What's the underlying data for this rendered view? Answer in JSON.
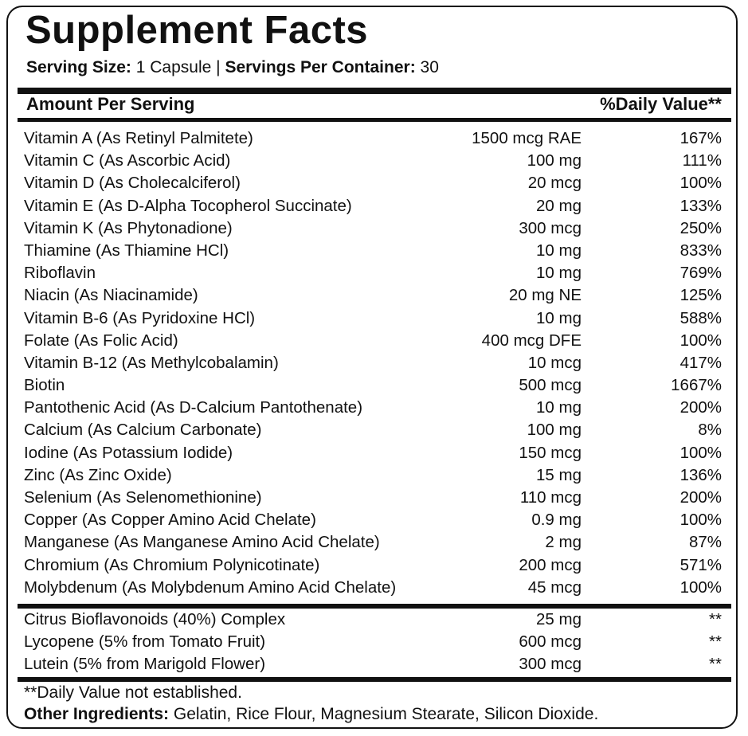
{
  "title": "Supplement Facts",
  "serving": {
    "size_label": "Serving Size:",
    "size_value": "1 Capsule",
    "separator": "|",
    "per_container_label": "Servings Per Container:",
    "per_container_value": "30"
  },
  "header": {
    "amount": "Amount Per Serving",
    "dv": "%Daily Value**"
  },
  "nutrients": [
    {
      "name": "Vitamin A (As Retinyl Palmitete)",
      "amount": "1500 mcg RAE",
      "dv": "167%"
    },
    {
      "name": "Vitamin C (As Ascorbic Acid)",
      "amount": "100 mg",
      "dv": "111%"
    },
    {
      "name": "Vitamin D (As Cholecalciferol)",
      "amount": "20 mcg",
      "dv": "100%"
    },
    {
      "name": "Vitamin E (As D-Alpha Tocopherol Succinate)",
      "amount": "20 mg",
      "dv": "133%"
    },
    {
      "name": "Vitamin K (As Phytonadione)",
      "amount": "300 mcg",
      "dv": "250%"
    },
    {
      "name": "Thiamine (As Thiamine HCl)",
      "amount": "10 mg",
      "dv": "833%"
    },
    {
      "name": "Riboflavin",
      "amount": "10 mg",
      "dv": "769%"
    },
    {
      "name": "Niacin (As Niacinamide)",
      "amount": "20 mg NE",
      "dv": "125%"
    },
    {
      "name": "Vitamin B-6 (As Pyridoxine HCl)",
      "amount": "10 mg",
      "dv": "588%"
    },
    {
      "name": "Folate (As Folic Acid)",
      "amount": "400 mcg DFE",
      "dv": "100%"
    },
    {
      "name": "Vitamin B-12 (As Methylcobalamin)",
      "amount": "10 mcg",
      "dv": "417%"
    },
    {
      "name": "Biotin",
      "amount": "500 mcg",
      "dv": "1667%"
    },
    {
      "name": "Pantothenic Acid (As D-Calcium Pantothenate)",
      "amount": "10 mg",
      "dv": "200%"
    },
    {
      "name": "Calcium (As Calcium Carbonate)",
      "amount": "100 mg",
      "dv": "8%"
    },
    {
      "name": "Iodine (As Potassium Iodide)",
      "amount": "150 mcg",
      "dv": "100%"
    },
    {
      "name": "Zinc (As Zinc Oxide)",
      "amount": "15 mg",
      "dv": "136%"
    },
    {
      "name": "Selenium (As Selenomethionine)",
      "amount": "110 mcg",
      "dv": "200%"
    },
    {
      "name": "Copper (As Copper Amino Acid Chelate)",
      "amount": "0.9 mg",
      "dv": "100%"
    },
    {
      "name": "Manganese (As Manganese Amino Acid Chelate)",
      "amount": "2 mg",
      "dv": "87%"
    },
    {
      "name": "Chromium (As Chromium Polynicotinate)",
      "amount": "200 mcg",
      "dv": "571%"
    },
    {
      "name": "Molybdenum (As Molybdenum Amino Acid Chelate)",
      "amount": "45 mcg",
      "dv": "100%"
    }
  ],
  "other_nutrients": [
    {
      "name": "Citrus Bioflavonoids (40%) Complex",
      "amount": "25 mg",
      "dv": "**"
    },
    {
      "name": "Lycopene (5% from Tomato Fruit)",
      "amount": "600 mcg",
      "dv": "**"
    },
    {
      "name": "Lutein (5% from Marigold Flower)",
      "amount": "300 mcg",
      "dv": "**"
    }
  ],
  "footnote": "**Daily Value not established.",
  "other_ingredients": {
    "label": "Other Ingredients:",
    "value": "Gelatin, Rice Flour, Magnesium Stearate, Silicon Dioxide."
  }
}
